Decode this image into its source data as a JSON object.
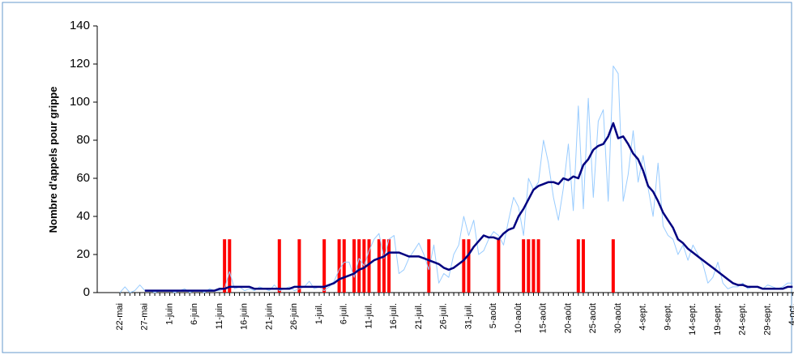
{
  "chart_data": {
    "type": "line",
    "y_label": "Nombre d'appels pour grippe",
    "ylim": [
      0,
      140
    ],
    "yticks": [
      0,
      20,
      40,
      60,
      80,
      100,
      120,
      140
    ],
    "categories": [
      "22-mai",
      null,
      null,
      null,
      null,
      "27-mai",
      null,
      null,
      null,
      null,
      "1-juin",
      null,
      null,
      null,
      null,
      "6-juin",
      null,
      null,
      null,
      null,
      "11-juin",
      null,
      null,
      null,
      null,
      "16-juin",
      null,
      null,
      null,
      null,
      "21-juin",
      null,
      null,
      null,
      null,
      "26-juin",
      null,
      null,
      null,
      null,
      "1-juil.",
      null,
      null,
      null,
      null,
      "6-juil.",
      null,
      null,
      null,
      null,
      "11-juil.",
      null,
      null,
      null,
      null,
      "16-juil.",
      null,
      null,
      null,
      null,
      "21-juil.",
      null,
      null,
      null,
      null,
      "26-juil.",
      null,
      null,
      null,
      null,
      "31-juil.",
      null,
      null,
      null,
      null,
      "5-août",
      null,
      null,
      null,
      null,
      "10-août",
      null,
      null,
      null,
      null,
      "15-août",
      null,
      null,
      null,
      null,
      "20-août",
      null,
      null,
      null,
      null,
      "25-août",
      null,
      null,
      null,
      null,
      "30-août",
      null,
      null,
      null,
      null,
      "4-sept.",
      null,
      null,
      null,
      null,
      "9-sept.",
      null,
      null,
      null,
      null,
      "14-sept.",
      null,
      null,
      null,
      null,
      "19-sept.",
      null,
      null,
      null,
      null,
      "24-sept.",
      null,
      null,
      null,
      null,
      "29-sept.",
      null,
      null,
      null,
      null,
      "4-oct."
    ],
    "series": [
      {
        "type": "bar",
        "color": "#ff0000",
        "values": [
          null,
          null,
          null,
          null,
          null,
          null,
          null,
          null,
          null,
          null,
          null,
          null,
          null,
          null,
          null,
          null,
          null,
          null,
          null,
          null,
          null,
          28,
          28,
          null,
          null,
          null,
          null,
          null,
          null,
          null,
          null,
          null,
          28,
          null,
          null,
          null,
          28,
          null,
          null,
          null,
          null,
          28,
          null,
          null,
          28,
          28,
          null,
          28,
          28,
          28,
          28,
          null,
          28,
          28,
          28,
          null,
          null,
          null,
          null,
          null,
          null,
          null,
          28,
          null,
          null,
          null,
          null,
          null,
          null,
          28,
          28,
          null,
          null,
          null,
          null,
          null,
          28,
          null,
          null,
          null,
          null,
          28,
          28,
          28,
          28,
          null,
          null,
          null,
          null,
          null,
          null,
          null,
          28,
          28,
          null,
          null,
          null,
          null,
          null,
          28,
          null,
          null,
          null,
          null,
          null,
          null,
          null,
          null,
          null,
          null,
          null,
          null,
          null,
          null,
          null,
          null,
          null,
          null,
          null,
          null,
          null,
          null,
          null,
          null,
          null,
          null,
          null,
          null,
          null,
          null,
          null,
          null,
          null,
          null,
          null,
          null
        ]
      },
      {
        "type": "line",
        "color": "#99ccff",
        "width": 1,
        "values": [
          0,
          3,
          0,
          1,
          4,
          1,
          1,
          0,
          1,
          1,
          1,
          0,
          1,
          2,
          0,
          1,
          1,
          0,
          2,
          1,
          1,
          2,
          11,
          2,
          3,
          1,
          2,
          1,
          3,
          2,
          1,
          4,
          1,
          2,
          3,
          1,
          2,
          3,
          6,
          2,
          3,
          1,
          3,
          6,
          12,
          16,
          16,
          8,
          18,
          14,
          22,
          28,
          31,
          18,
          28,
          30,
          10,
          12,
          18,
          22,
          26,
          20,
          12,
          25,
          5,
          10,
          8,
          20,
          25,
          40,
          30,
          38,
          20,
          22,
          28,
          32,
          30,
          25,
          38,
          50,
          45,
          30,
          60,
          54,
          58,
          80,
          68,
          50,
          38,
          55,
          78,
          43,
          98,
          44,
          102,
          50,
          90,
          96,
          48,
          119,
          115,
          48,
          62,
          85,
          58,
          72,
          55,
          40,
          68,
          35,
          30,
          28,
          20,
          25,
          17,
          25,
          20,
          15,
          5,
          8,
          16,
          5,
          2,
          3,
          3,
          5,
          2,
          3,
          3,
          2,
          4,
          3,
          2,
          3,
          5,
          5
        ]
      },
      {
        "type": "line",
        "color": "#000080",
        "width": 2.5,
        "values": [
          null,
          null,
          null,
          null,
          null,
          1,
          1,
          1,
          1,
          1,
          1,
          1,
          1,
          1,
          1,
          1,
          1,
          1,
          1,
          1,
          2,
          2,
          3,
          3,
          3,
          3,
          3,
          2,
          2,
          2,
          2,
          2,
          2,
          2,
          2,
          3,
          3,
          3,
          3,
          3,
          3,
          3,
          4,
          5,
          7,
          8,
          9,
          10,
          12,
          13,
          15,
          17,
          18,
          19,
          21,
          21,
          21,
          20,
          19,
          19,
          19,
          18,
          17,
          16,
          15,
          13,
          12,
          13,
          15,
          17,
          20,
          24,
          27,
          30,
          29,
          29,
          28,
          31,
          33,
          34,
          40,
          44,
          49,
          54,
          56,
          57,
          58,
          58,
          57,
          60,
          59,
          61,
          60,
          67,
          70,
          75,
          77,
          78,
          82,
          89,
          81,
          82,
          78,
          73,
          70,
          64,
          56,
          53,
          48,
          42,
          38,
          34,
          28,
          26,
          23,
          21,
          19,
          17,
          15,
          13,
          11,
          9,
          7,
          5,
          4,
          4,
          3,
          3,
          3,
          2,
          2,
          2,
          2,
          2,
          3,
          3
        ]
      }
    ]
  }
}
